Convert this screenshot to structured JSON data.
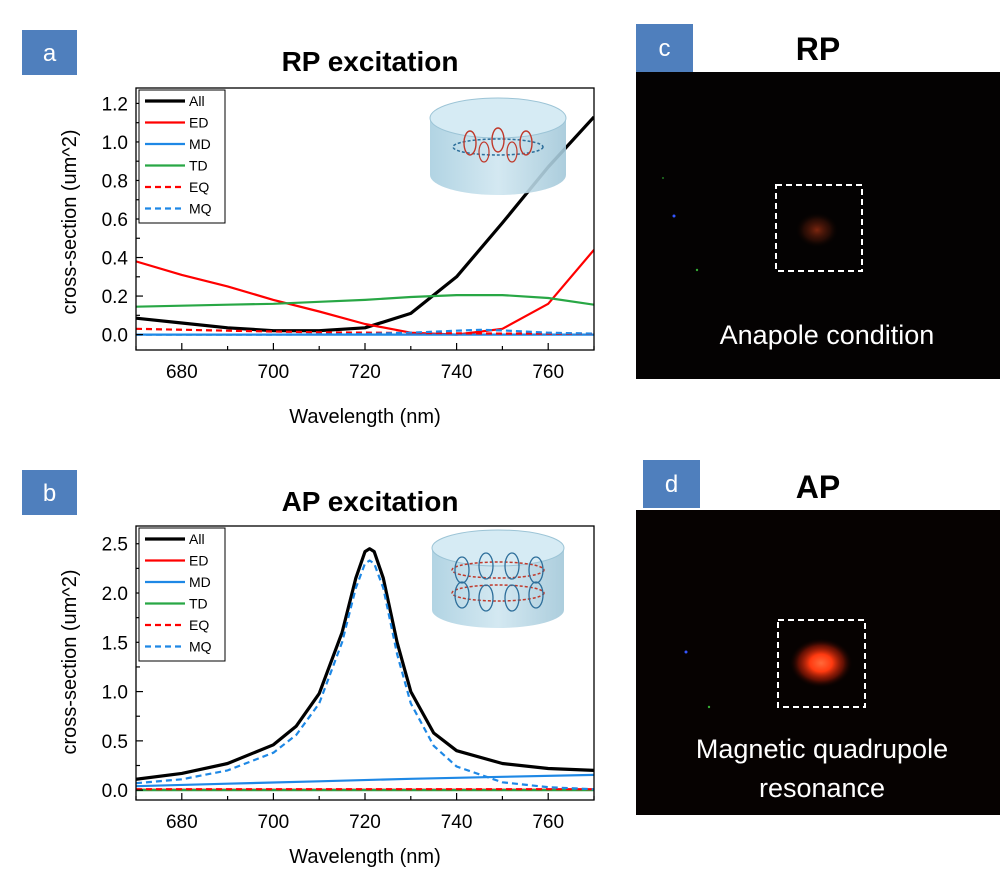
{
  "panels": {
    "a": {
      "letter": "a"
    },
    "b": {
      "letter": "b"
    },
    "c": {
      "letter": "c",
      "title": "RP",
      "caption_lines": [
        "Anapole condition"
      ]
    },
    "d": {
      "letter": "d",
      "title": "AP",
      "caption_lines": [
        "Magnetic quadrupole",
        "resonance"
      ]
    }
  },
  "chart_data": [
    {
      "panel": "a",
      "type": "line",
      "title": "RP excitation",
      "xlabel": "Wavelength (nm)",
      "ylabel": "cross-section (um^2)",
      "xlim": [
        670,
        770
      ],
      "ylim": [
        -0.08,
        1.28
      ],
      "xticks": [
        680,
        700,
        720,
        740,
        760
      ],
      "yticks": [
        0.0,
        0.2,
        0.4,
        0.6,
        0.8,
        1.0,
        1.2
      ],
      "ytick_labels": [
        "0.0",
        "0.2",
        "0.4",
        "0.6",
        "0.8",
        "1.0",
        "1.2"
      ],
      "legend_position": "top-left",
      "grid": false,
      "series": [
        {
          "name": "All",
          "color": "#000000",
          "dash": "solid",
          "x": [
            670,
            680,
            690,
            700,
            710,
            720,
            730,
            740,
            750,
            760,
            770
          ],
          "y": [
            0.085,
            0.06,
            0.035,
            0.02,
            0.02,
            0.035,
            0.11,
            0.3,
            0.58,
            0.87,
            1.13
          ]
        },
        {
          "name": "ED",
          "color": "#ff0000",
          "dash": "solid",
          "x": [
            670,
            680,
            690,
            700,
            710,
            720,
            730,
            740,
            750,
            760,
            770
          ],
          "y": [
            0.38,
            0.31,
            0.25,
            0.18,
            0.12,
            0.055,
            0.01,
            0.0,
            0.03,
            0.16,
            0.44
          ]
        },
        {
          "name": "MD",
          "color": "#1e88e5",
          "dash": "solid",
          "x": [
            670,
            700,
            730,
            760,
            770
          ],
          "y": [
            0.0,
            0.0,
            0.0,
            0.0,
            0.0
          ]
        },
        {
          "name": "TD",
          "color": "#28a745",
          "dash": "solid",
          "x": [
            670,
            680,
            690,
            700,
            710,
            720,
            730,
            740,
            750,
            760,
            770
          ],
          "y": [
            0.145,
            0.15,
            0.155,
            0.16,
            0.17,
            0.18,
            0.195,
            0.205,
            0.205,
            0.19,
            0.155
          ]
        },
        {
          "name": "EQ",
          "color": "#ff0000",
          "dash": "dashed",
          "x": [
            670,
            690,
            710,
            730,
            750,
            770
          ],
          "y": [
            0.03,
            0.02,
            0.012,
            0.008,
            0.005,
            0.005
          ]
        },
        {
          "name": "MQ",
          "color": "#1e88e5",
          "dash": "dashed",
          "x": [
            670,
            700,
            720,
            730,
            740,
            745,
            750,
            760,
            770
          ],
          "y": [
            0.0,
            0.0,
            0.003,
            0.01,
            0.02,
            0.025,
            0.022,
            0.01,
            0.005
          ]
        }
      ]
    },
    {
      "panel": "b",
      "type": "line",
      "title": "AP excitation",
      "xlabel": "Wavelength (nm)",
      "ylabel": "cross-section (um^2)",
      "xlim": [
        670,
        770
      ],
      "ylim": [
        -0.1,
        2.68
      ],
      "xticks": [
        680,
        700,
        720,
        740,
        760
      ],
      "yticks": [
        0.0,
        0.5,
        1.0,
        1.5,
        2.0,
        2.5
      ],
      "ytick_labels": [
        "0.0",
        "0.5",
        "1.0",
        "1.5",
        "2.0",
        "2.5"
      ],
      "legend_position": "top-left",
      "grid": false,
      "series": [
        {
          "name": "All",
          "color": "#000000",
          "dash": "solid",
          "x": [
            670,
            680,
            690,
            700,
            705,
            710,
            715,
            718,
            720,
            721,
            722,
            724,
            727,
            730,
            735,
            740,
            750,
            760,
            770
          ],
          "y": [
            0.11,
            0.17,
            0.27,
            0.46,
            0.65,
            0.98,
            1.6,
            2.15,
            2.42,
            2.45,
            2.42,
            2.15,
            1.5,
            1.0,
            0.58,
            0.4,
            0.27,
            0.22,
            0.2
          ]
        },
        {
          "name": "ED",
          "color": "#ff0000",
          "dash": "solid",
          "x": [
            670,
            720,
            770
          ],
          "y": [
            0.005,
            0.005,
            0.005
          ]
        },
        {
          "name": "MD",
          "color": "#1e88e5",
          "dash": "solid",
          "x": [
            670,
            690,
            710,
            730,
            750,
            770
          ],
          "y": [
            0.04,
            0.065,
            0.09,
            0.115,
            0.135,
            0.155
          ]
        },
        {
          "name": "TD",
          "color": "#28a745",
          "dash": "solid",
          "x": [
            670,
            720,
            770
          ],
          "y": [
            0.0,
            0.0,
            0.0
          ]
        },
        {
          "name": "EQ",
          "color": "#ff0000",
          "dash": "dashed",
          "x": [
            670,
            720,
            770
          ],
          "y": [
            0.01,
            0.01,
            0.01
          ]
        },
        {
          "name": "MQ",
          "color": "#1e88e5",
          "dash": "dashed",
          "x": [
            670,
            680,
            690,
            700,
            705,
            710,
            715,
            718,
            720,
            721,
            722,
            724,
            727,
            730,
            735,
            740,
            750,
            760,
            770
          ],
          "y": [
            0.07,
            0.11,
            0.2,
            0.38,
            0.56,
            0.88,
            1.5,
            2.05,
            2.3,
            2.33,
            2.3,
            2.05,
            1.38,
            0.88,
            0.45,
            0.24,
            0.08,
            0.03,
            0.01
          ]
        }
      ]
    }
  ]
}
